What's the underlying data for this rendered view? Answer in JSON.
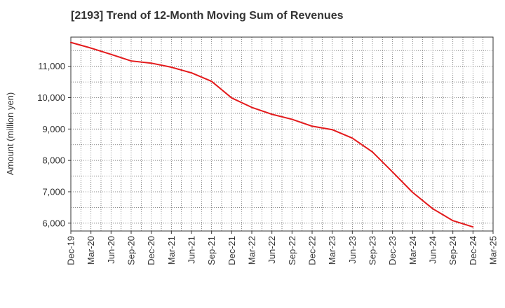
{
  "chart_data": {
    "type": "line",
    "title": "[2193]  Trend of 12-Month Moving Sum of Revenues",
    "xlabel": "",
    "ylabel": "Amount (million yen)",
    "x_tick_labels": [
      "Dec-19",
      "Mar-20",
      "Jun-20",
      "Sep-20",
      "Dec-20",
      "Mar-21",
      "Jun-21",
      "Sep-21",
      "Dec-21",
      "Mar-22",
      "Jun-22",
      "Sep-22",
      "Dec-22",
      "Mar-23",
      "Jun-23",
      "Sep-23",
      "Dec-23",
      "Mar-24",
      "Jun-24",
      "Sep-24",
      "Dec-24",
      "Mar-25"
    ],
    "y_ticks": [
      6000,
      7000,
      8000,
      9000,
      10000,
      11000
    ],
    "y_tick_labels": [
      "6,000",
      "7,000",
      "8,000",
      "9,000",
      "10,000",
      "11,000"
    ],
    "ylim": [
      5750,
      11930
    ],
    "grid": true,
    "series": [
      {
        "color": "#e31a1c",
        "x": [
          "Dec-19",
          "Mar-20",
          "Jun-20",
          "Sep-20",
          "Dec-20",
          "Mar-21",
          "Jun-21",
          "Sep-21",
          "Dec-21",
          "Mar-22",
          "Jun-22",
          "Sep-22",
          "Dec-22",
          "Mar-23",
          "Jun-23",
          "Sep-23",
          "Dec-23",
          "Mar-24",
          "Jun-24",
          "Sep-24",
          "Dec-24"
        ],
        "values": [
          11760,
          11580,
          11380,
          11170,
          11100,
          10970,
          10790,
          10520,
          9990,
          9690,
          9470,
          9310,
          9090,
          8980,
          8710,
          8270,
          7630,
          6980,
          6460,
          6080,
          5880
        ]
      }
    ]
  }
}
